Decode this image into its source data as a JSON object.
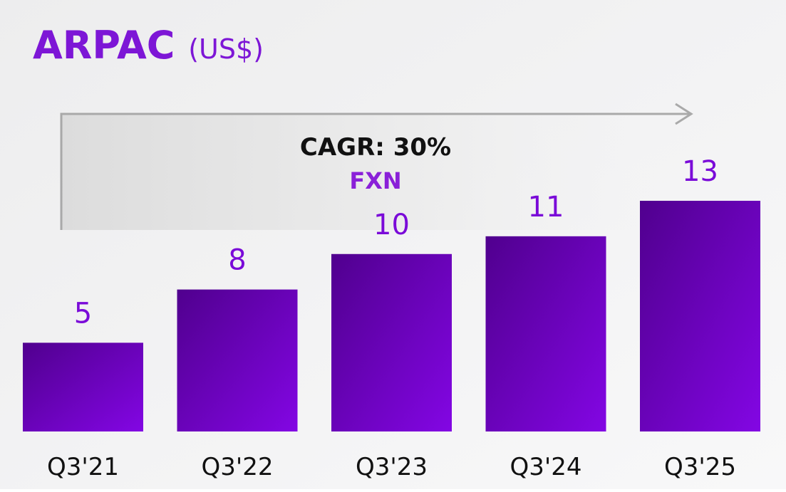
{
  "chart_data": {
    "type": "bar",
    "title": "ARPAC",
    "subtitle": "(US$)",
    "annotations": [
      "CAGR: 30%",
      "FXN"
    ],
    "categories": [
      "Q3'21",
      "Q3'22",
      "Q3'23",
      "Q3'24",
      "Q3'25"
    ],
    "values": [
      5,
      8,
      10,
      11,
      13
    ],
    "color": "#7a0ad8"
  }
}
